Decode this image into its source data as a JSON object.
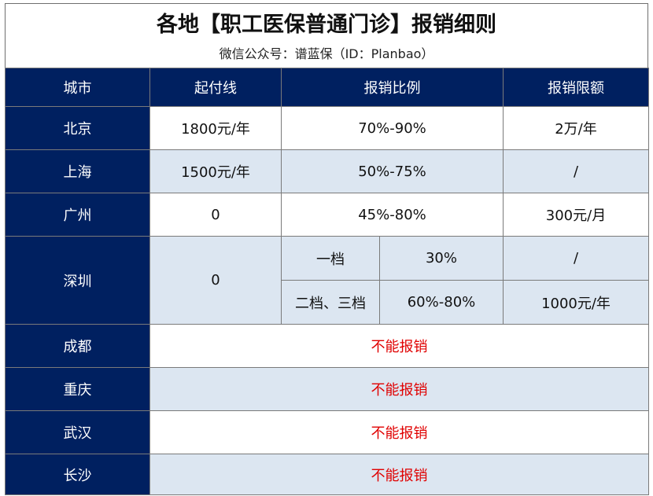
{
  "title": "各地【职工医保普通门诊】报销细则",
  "subtitle": "微信公众号：谱蓝保（ID：Planbao）",
  "headers": {
    "city": "城市",
    "deductible": "起付线",
    "ratio": "报销比例",
    "limit": "报销限额"
  },
  "rows": {
    "beijing": {
      "city": "北京",
      "deductible": "1800元/年",
      "ratio": "70%-90%",
      "limit": "2万/年"
    },
    "shanghai": {
      "city": "上海",
      "deductible": "1500元/年",
      "ratio": "50%-75%",
      "limit": "/"
    },
    "guangzhou": {
      "city": "广州",
      "deductible": "0",
      "ratio": "45%-80%",
      "limit": "300元/月"
    },
    "shenzhen": {
      "city": "深圳",
      "deductible": "0",
      "tier1": {
        "label": "一档",
        "ratio": "30%",
        "limit": "/"
      },
      "tier23": {
        "label": "二档、三档",
        "ratio": "60%-80%",
        "limit": "1000元/年"
      }
    },
    "chengdu": {
      "city": "成都",
      "note": "不能报销"
    },
    "chongqing": {
      "city": "重庆",
      "note": "不能报销"
    },
    "wuhan": {
      "city": "武汉",
      "note": "不能报销"
    },
    "changsha": {
      "city": "长沙",
      "note": "不能报销"
    }
  },
  "colors": {
    "header_bg": "#002060",
    "stripe_bg": "#dce6f1",
    "note_red": "#e00000"
  }
}
